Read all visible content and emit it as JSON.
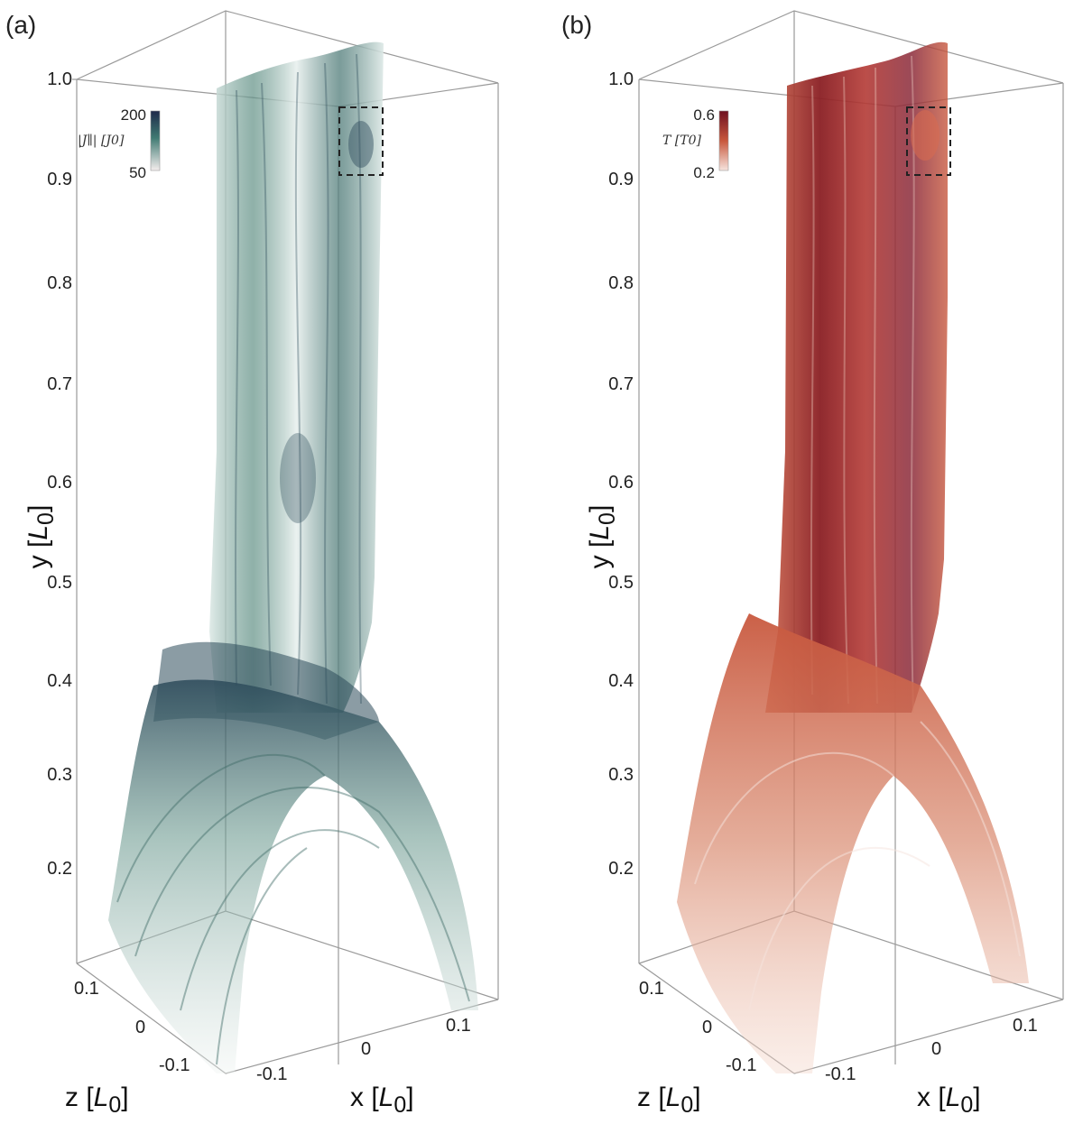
{
  "panels": [
    {
      "id": "a",
      "label": "(a)",
      "y_axis": {
        "label": "y [L0]",
        "ticks": [
          "1.0",
          "0.9",
          "0.8",
          "0.7",
          "0.6",
          "0.5",
          "0.4",
          "0.3",
          "0.2"
        ]
      },
      "z_axis": {
        "label": "z [L0]",
        "ticks": [
          "0.1",
          "0",
          "-0.1"
        ]
      },
      "x_axis": {
        "label": "x [L0]",
        "ticks": [
          "-0.1",
          "0",
          "0.1"
        ]
      },
      "colorbar": {
        "label": "|J∥| [J0]",
        "max": "200",
        "min": "50",
        "color_high": "#1f2a4a",
        "color_mid": "#3f7a72",
        "color_low": "#f4eeee"
      },
      "volume_colors": {
        "dark": "#2c4a5a",
        "mid": "#5f8f84",
        "light": "#dde9e6"
      }
    },
    {
      "id": "b",
      "label": "(b)",
      "y_axis": {
        "label": "y [L0]",
        "ticks": [
          "1.0",
          "0.9",
          "0.8",
          "0.7",
          "0.6",
          "0.5",
          "0.4",
          "0.3",
          "0.2"
        ]
      },
      "z_axis": {
        "label": "z [L0]",
        "ticks": [
          "0.1",
          "0",
          "-0.1"
        ]
      },
      "x_axis": {
        "label": "x [L0]",
        "ticks": [
          "-0.1",
          "0",
          "0.1"
        ]
      },
      "colorbar": {
        "label": "T [T0]",
        "max": "0.6",
        "min": "0.2",
        "color_high": "#6e1020",
        "color_mid": "#c8573c",
        "color_low": "#f6e4de"
      },
      "volume_colors": {
        "dark": "#8a1f24",
        "mid": "#c8583e",
        "light": "#f4d6c9"
      }
    }
  ]
}
